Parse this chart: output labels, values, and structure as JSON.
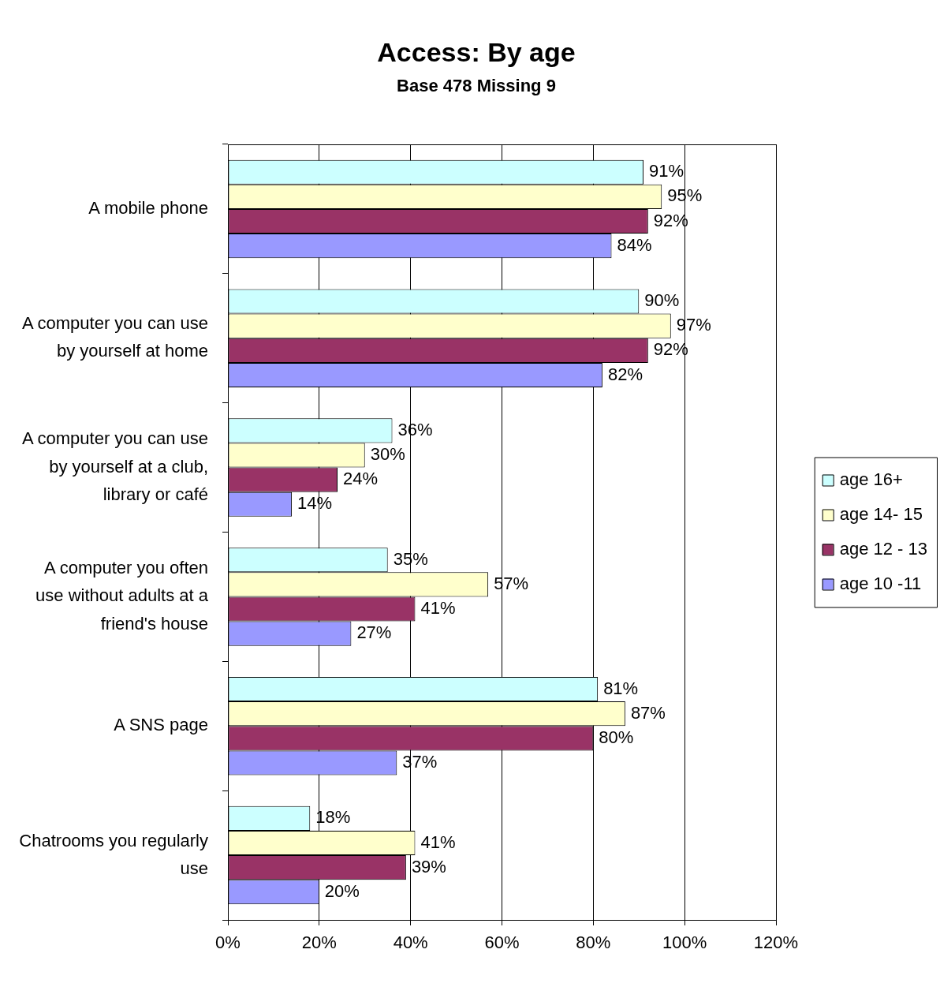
{
  "chart_data": {
    "type": "bar",
    "orientation": "horizontal",
    "title": "Access: By age",
    "subtitle": "Base 478 Missing 9",
    "categories": [
      "A mobile phone",
      "A computer you can use by yourself at home",
      "A computer you can use by yourself at a club, library or café",
      "A computer you often use without adults at a friend's house",
      "A SNS page",
      "Chatrooms you regularly use"
    ],
    "series": [
      {
        "name": "age 16+",
        "color": "#ccffff",
        "values": [
          91,
          90,
          36,
          35,
          81,
          18
        ],
        "value_labels": [
          "91%",
          "90%",
          "36%",
          "35%",
          "81%",
          "18%"
        ]
      },
      {
        "name": "age 14- 15",
        "color": "#ffffcc",
        "values": [
          95,
          97,
          30,
          57,
          87,
          41
        ],
        "value_labels": [
          "95%",
          "97%",
          "30%",
          "57%",
          "87%",
          "41%"
        ]
      },
      {
        "name": "age 12 - 13",
        "color": "#993366",
        "values": [
          92,
          92,
          24,
          41,
          80,
          39
        ],
        "value_labels": [
          "92%",
          "92%",
          "24%",
          "41%",
          "80%",
          "39%"
        ]
      },
      {
        "name": "age 10 -11",
        "color": "#9999ff",
        "values": [
          84,
          82,
          14,
          27,
          37,
          20
        ],
        "value_labels": [
          "84%",
          "82%",
          "14%",
          "27%",
          "37%",
          "20%"
        ]
      }
    ],
    "xlim": [
      0,
      120
    ],
    "xticks": [
      {
        "value": 0,
        "label": "0%"
      },
      {
        "value": 20,
        "label": "20%"
      },
      {
        "value": 40,
        "label": "40%"
      },
      {
        "value": 60,
        "label": "60%"
      },
      {
        "value": 80,
        "label": "80%"
      },
      {
        "value": 100,
        "label": "100%"
      },
      {
        "value": 120,
        "label": "120%"
      }
    ],
    "grid": "x",
    "legend": "right"
  }
}
